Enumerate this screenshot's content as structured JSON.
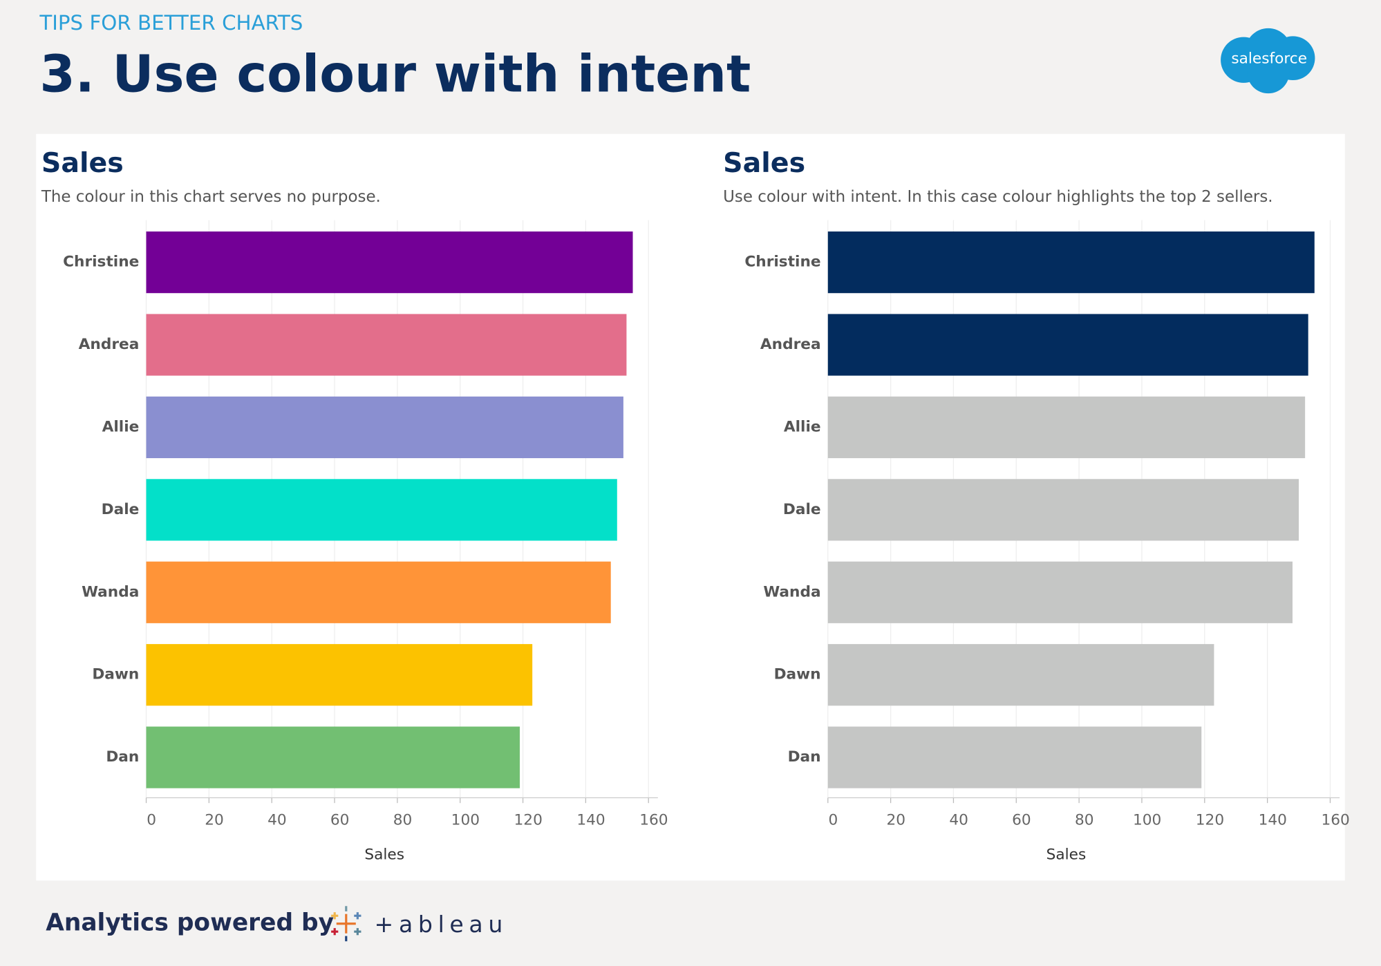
{
  "header": {
    "kicker": "TIPS FOR BETTER CHARTS",
    "title": "3. Use colour with intent",
    "logo": "salesforce"
  },
  "chart_data": [
    {
      "type": "bar",
      "orientation": "horizontal",
      "title": "Sales",
      "subtitle": "The colour in this chart serves no purpose.",
      "categories": [
        "Christine",
        "Andrea",
        "Allie",
        "Dale",
        "Wanda",
        "Dawn",
        "Dan"
      ],
      "values": [
        155,
        153,
        152,
        150,
        148,
        123,
        119
      ],
      "colors": [
        "#730096",
        "#e36e8b",
        "#8a8fd0",
        "#03e0c9",
        "#ff9438",
        "#fcc200",
        "#72bf72"
      ],
      "xlabel": "Sales",
      "xlim": [
        0,
        163
      ],
      "xticks": [
        0,
        20,
        40,
        60,
        80,
        100,
        120,
        140,
        160
      ],
      "grid": true
    },
    {
      "type": "bar",
      "orientation": "horizontal",
      "title": "Sales",
      "subtitle": "Use colour with intent. In this case colour highlights the top 2 sellers.",
      "categories": [
        "Christine",
        "Andrea",
        "Allie",
        "Dale",
        "Wanda",
        "Dawn",
        "Dan"
      ],
      "values": [
        155,
        153,
        152,
        150,
        148,
        123,
        119
      ],
      "colors": [
        "#032c5e",
        "#032c5e",
        "#c5c6c5",
        "#c5c6c5",
        "#c5c6c5",
        "#c5c6c5",
        "#c5c6c5"
      ],
      "xlabel": "Sales",
      "xlim": [
        0,
        163
      ],
      "xticks": [
        0,
        20,
        40,
        60,
        80,
        100,
        120,
        140,
        160
      ],
      "grid": true
    }
  ],
  "footer": {
    "text": "Analytics powered by",
    "brand": "+ableau"
  }
}
